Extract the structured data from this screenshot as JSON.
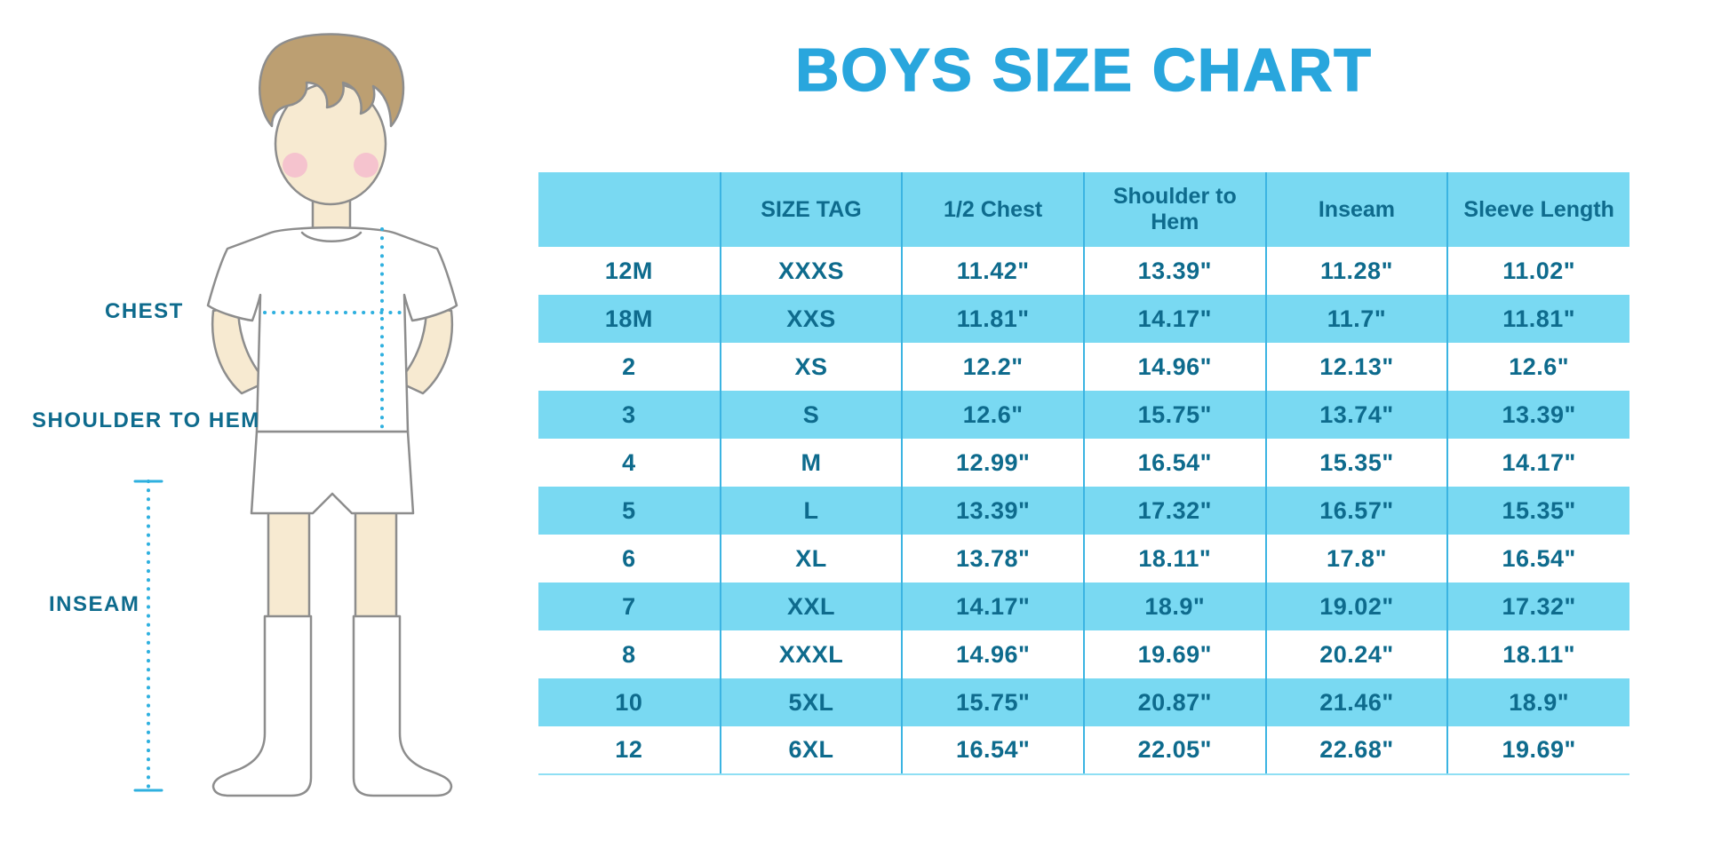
{
  "title": "BOYS SIZE CHART",
  "figure": {
    "labels": {
      "chest": "CHEST",
      "shoulder_to_hem": "SHOULDER TO HEM",
      "inseam": "INSEAM"
    }
  },
  "colors": {
    "title_blue": "#29A6DD",
    "row_cyan": "#79D9F2",
    "text_dark_blue": "#0E6B8D",
    "column_line": "#3BB4E2",
    "dotted_measure_line": "#2FB0DF",
    "skin": "#F7EAD1",
    "hair": "#BC9F72"
  },
  "chart_data": {
    "type": "table",
    "title": "BOYS SIZE CHART",
    "columns": [
      "",
      "SIZE TAG",
      "1/2 Chest",
      "Shoulder to Hem",
      "Inseam",
      "Sleeve Length"
    ],
    "rows": [
      [
        "12M",
        "XXXS",
        "11.42\"",
        "13.39\"",
        "11.28\"",
        "11.02\""
      ],
      [
        "18M",
        "XXS",
        "11.81\"",
        "14.17\"",
        "11.7\"",
        "11.81\""
      ],
      [
        "2",
        "XS",
        "12.2\"",
        "14.96\"",
        "12.13\"",
        "12.6\""
      ],
      [
        "3",
        "S",
        "12.6\"",
        "15.75\"",
        "13.74\"",
        "13.39\""
      ],
      [
        "4",
        "M",
        "12.99\"",
        "16.54\"",
        "15.35\"",
        "14.17\""
      ],
      [
        "5",
        "L",
        "13.39\"",
        "17.32\"",
        "16.57\"",
        "15.35\""
      ],
      [
        "6",
        "XL",
        "13.78\"",
        "18.11\"",
        "17.8\"",
        "16.54\""
      ],
      [
        "7",
        "XXL",
        "14.17\"",
        "18.9\"",
        "19.02\"",
        "17.32\""
      ],
      [
        "8",
        "XXXL",
        "14.96\"",
        "19.69\"",
        "20.24\"",
        "18.11\""
      ],
      [
        "10",
        "5XL",
        "15.75\"",
        "20.87\"",
        "21.46\"",
        "18.9\""
      ],
      [
        "12",
        "6XL",
        "16.54\"",
        "22.05\"",
        "22.68\"",
        "19.69\""
      ]
    ]
  }
}
